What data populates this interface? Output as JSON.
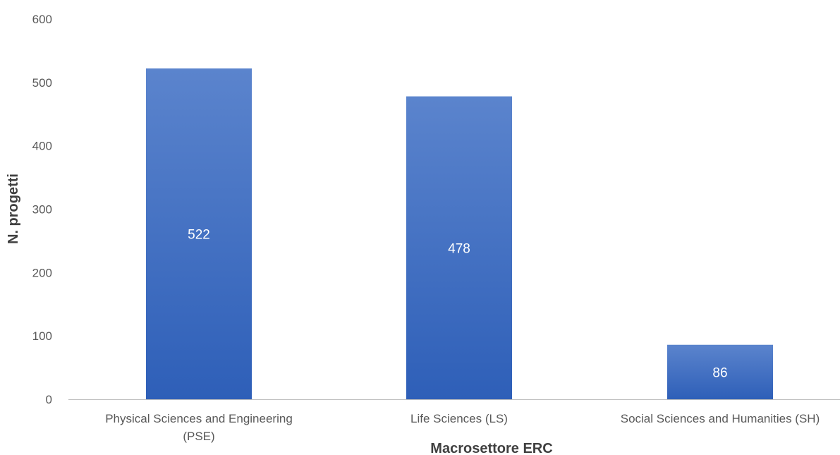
{
  "chart_data": {
    "type": "bar",
    "categories": [
      [
        "Physical Sciences and Engineering",
        "(PSE)"
      ],
      [
        "Life Sciences (LS)"
      ],
      [
        "Social Sciences and Humanities (SH)"
      ]
    ],
    "values": [
      522,
      478,
      86
    ],
    "data_labels": [
      "522",
      "478",
      "86"
    ],
    "xlabel": "Macrosettore ERC",
    "ylabel": "N. progetti",
    "ylim": [
      0,
      600
    ],
    "yticks": [
      "0",
      "100",
      "200",
      "300",
      "400",
      "500",
      "600"
    ],
    "grid": false,
    "legend": "none",
    "colors": {
      "bar_top": "#5b84cd",
      "bar_bottom": "#2e5fb8",
      "axis": "#bfbfbf"
    }
  }
}
